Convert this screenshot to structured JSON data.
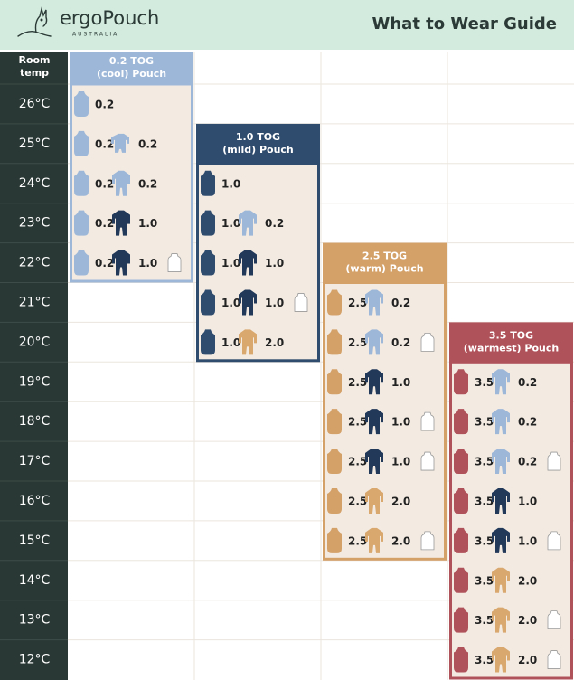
{
  "header": {
    "brand": "ergoPouch",
    "brand_sub": "AUSTRALIA",
    "title": "What to Wear Guide"
  },
  "room_temp_label": [
    "Room",
    "temp"
  ],
  "pouches": [
    {
      "title": [
        "0.2 TOG",
        "(cool) Pouch"
      ],
      "color": "#9db7d8"
    },
    {
      "title": [
        "1.0 TOG",
        "(mild) Pouch"
      ],
      "color": "#2f4c6e"
    },
    {
      "title": [
        "2.5 TOG",
        "(warm) Pouch"
      ],
      "color": "#d4a169"
    },
    {
      "title": [
        "3.5 TOG",
        "(warmest) Pouch"
      ],
      "color": "#b0525a"
    }
  ],
  "rows": [
    {
      "temp": "26°C",
      "cells": [
        [
          {
            "type": "pouch",
            "color": "#9db7d8",
            "label": "0.2"
          }
        ],
        null,
        null,
        null
      ]
    },
    {
      "temp": "25°C",
      "cells": [
        [
          {
            "type": "pouch",
            "color": "#9db7d8",
            "label": "0.2"
          },
          {
            "type": "romper",
            "color": "#9db7d8",
            "label": "0.2"
          }
        ],
        null,
        null,
        null
      ]
    },
    {
      "temp": "24°C",
      "cells": [
        [
          {
            "type": "pouch",
            "color": "#9db7d8",
            "label": "0.2"
          },
          {
            "type": "suit",
            "color": "#9db7d8",
            "label": "0.2"
          }
        ],
        [
          {
            "type": "pouch",
            "color": "#2f4c6e",
            "label": "1.0"
          }
        ],
        null,
        null
      ]
    },
    {
      "temp": "23°C",
      "cells": [
        [
          {
            "type": "pouch",
            "color": "#9db7d8",
            "label": "0.2"
          },
          {
            "type": "suit",
            "color": "#22395a",
            "label": "1.0"
          }
        ],
        [
          {
            "type": "pouch",
            "color": "#2f4c6e",
            "label": "1.0"
          },
          {
            "type": "suit",
            "color": "#9db7d8",
            "label": "0.2"
          }
        ],
        null,
        null
      ]
    },
    {
      "temp": "22°C",
      "cells": [
        [
          {
            "type": "pouch",
            "color": "#9db7d8",
            "label": "0.2"
          },
          {
            "type": "suit",
            "color": "#22395a",
            "label": "1.0"
          },
          {
            "type": "singlet",
            "color": "#ffffff"
          }
        ],
        [
          {
            "type": "pouch",
            "color": "#2f4c6e",
            "label": "1.0"
          },
          {
            "type": "suit",
            "color": "#22395a",
            "label": "1.0"
          }
        ],
        null,
        null
      ]
    },
    {
      "temp": "21°C",
      "cells": [
        null,
        [
          {
            "type": "pouch",
            "color": "#2f4c6e",
            "label": "1.0"
          },
          {
            "type": "suit",
            "color": "#22395a",
            "label": "1.0"
          },
          {
            "type": "singlet",
            "color": "#ffffff"
          }
        ],
        [
          {
            "type": "pouch",
            "color": "#d4a169",
            "label": "2.5"
          },
          {
            "type": "suit",
            "color": "#9db7d8",
            "label": "0.2"
          }
        ],
        null
      ]
    },
    {
      "temp": "20°C",
      "cells": [
        null,
        [
          {
            "type": "pouch",
            "color": "#2f4c6e",
            "label": "1.0"
          },
          {
            "type": "suit",
            "color": "#d9a86f",
            "label": "2.0"
          }
        ],
        [
          {
            "type": "pouch",
            "color": "#d4a169",
            "label": "2.5"
          },
          {
            "type": "suit",
            "color": "#9db7d8",
            "label": "0.2"
          },
          {
            "type": "singlet",
            "color": "#ffffff"
          }
        ],
        null
      ]
    },
    {
      "temp": "19°C",
      "cells": [
        null,
        null,
        [
          {
            "type": "pouch",
            "color": "#d4a169",
            "label": "2.5"
          },
          {
            "type": "suit",
            "color": "#22395a",
            "label": "1.0"
          }
        ],
        [
          {
            "type": "pouch",
            "color": "#b0525a",
            "label": "3.5"
          },
          {
            "type": "suit",
            "color": "#9db7d8",
            "label": "0.2"
          }
        ]
      ]
    },
    {
      "temp": "18°C",
      "cells": [
        null,
        null,
        [
          {
            "type": "pouch",
            "color": "#d4a169",
            "label": "2.5"
          },
          {
            "type": "suit",
            "color": "#22395a",
            "label": "1.0"
          },
          {
            "type": "singlet",
            "color": "#ffffff"
          }
        ],
        [
          {
            "type": "pouch",
            "color": "#b0525a",
            "label": "3.5"
          },
          {
            "type": "suit",
            "color": "#9db7d8",
            "label": "0.2"
          }
        ]
      ]
    },
    {
      "temp": "17°C",
      "cells": [
        null,
        null,
        [
          {
            "type": "pouch",
            "color": "#d4a169",
            "label": "2.5"
          },
          {
            "type": "suit",
            "color": "#22395a",
            "label": "1.0"
          },
          {
            "type": "singlet",
            "color": "#ffffff"
          }
        ],
        [
          {
            "type": "pouch",
            "color": "#b0525a",
            "label": "3.5"
          },
          {
            "type": "suit",
            "color": "#9db7d8",
            "label": "0.2"
          },
          {
            "type": "singlet",
            "color": "#ffffff"
          }
        ]
      ]
    },
    {
      "temp": "16°C",
      "cells": [
        null,
        null,
        [
          {
            "type": "pouch",
            "color": "#d4a169",
            "label": "2.5"
          },
          {
            "type": "suit",
            "color": "#d9a86f",
            "label": "2.0"
          }
        ],
        [
          {
            "type": "pouch",
            "color": "#b0525a",
            "label": "3.5"
          },
          {
            "type": "suit",
            "color": "#22395a",
            "label": "1.0"
          }
        ]
      ]
    },
    {
      "temp": "15°C",
      "cells": [
        null,
        null,
        [
          {
            "type": "pouch",
            "color": "#d4a169",
            "label": "2.5"
          },
          {
            "type": "suit",
            "color": "#d9a86f",
            "label": "2.0"
          },
          {
            "type": "singlet",
            "color": "#ffffff"
          }
        ],
        [
          {
            "type": "pouch",
            "color": "#b0525a",
            "label": "3.5"
          },
          {
            "type": "suit",
            "color": "#22395a",
            "label": "1.0"
          },
          {
            "type": "singlet",
            "color": "#ffffff"
          }
        ]
      ]
    },
    {
      "temp": "14°C",
      "cells": [
        null,
        null,
        null,
        [
          {
            "type": "pouch",
            "color": "#b0525a",
            "label": "3.5"
          },
          {
            "type": "suit",
            "color": "#d9a86f",
            "label": "2.0"
          }
        ]
      ]
    },
    {
      "temp": "13°C",
      "cells": [
        null,
        null,
        null,
        [
          {
            "type": "pouch",
            "color": "#b0525a",
            "label": "3.5"
          },
          {
            "type": "suit",
            "color": "#d9a86f",
            "label": "2.0"
          },
          {
            "type": "singlet",
            "color": "#ffffff"
          }
        ]
      ]
    },
    {
      "temp": "12°C",
      "cells": [
        null,
        null,
        null,
        [
          {
            "type": "pouch",
            "color": "#b0525a",
            "label": "3.5"
          },
          {
            "type": "suit",
            "color": "#d9a86f",
            "label": "2.0"
          },
          {
            "type": "singlet",
            "color": "#ffffff"
          }
        ]
      ]
    }
  ]
}
